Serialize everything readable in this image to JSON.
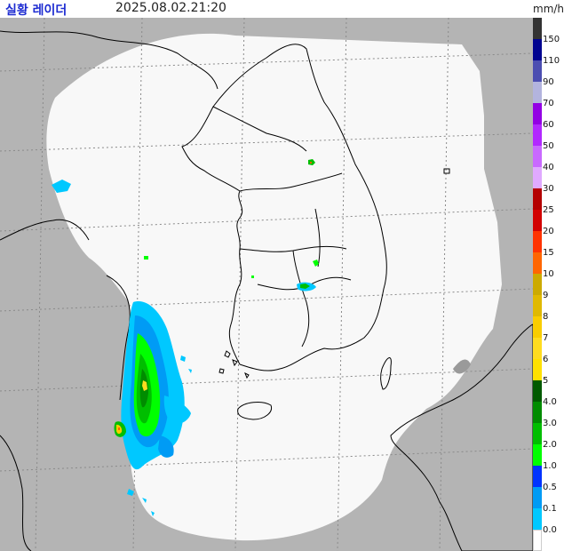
{
  "header": {
    "title": "실황 레이더",
    "timestamp": "2025.08.02.21:20",
    "unit": "mm/h"
  },
  "legend": {
    "levels": [
      {
        "label": "150",
        "color": "#333333"
      },
      {
        "label": "110",
        "color": "#000390"
      },
      {
        "label": "90",
        "color": "#4c4eb1"
      },
      {
        "label": "70",
        "color": "#b3b4de"
      },
      {
        "label": "60",
        "color": "#9300e4"
      },
      {
        "label": "50",
        "color": "#b229ff"
      },
      {
        "label": "40",
        "color": "#c969ff"
      },
      {
        "label": "30",
        "color": "#e0a9ff"
      },
      {
        "label": "25",
        "color": "#b40000"
      },
      {
        "label": "20",
        "color": "#d20000"
      },
      {
        "label": "15",
        "color": "#ff3300"
      },
      {
        "label": "10",
        "color": "#ff6600"
      },
      {
        "label": "9",
        "color": "#ccaa00"
      },
      {
        "label": "8",
        "color": "#e0b900"
      },
      {
        "label": "7",
        "color": "#f9cd00"
      },
      {
        "label": "6",
        "color": "#ffdc1f"
      },
      {
        "label": "5",
        "color": "#ffe100"
      },
      {
        "label": "4.0",
        "color": "#005a00"
      },
      {
        "label": "3.0",
        "color": "#008c00"
      },
      {
        "label": "2.0",
        "color": "#00be00"
      },
      {
        "label": "1.0",
        "color": "#00ff00"
      },
      {
        "label": "0.5",
        "color": "#0033ff"
      },
      {
        "label": "0.1",
        "color": "#009bf5"
      },
      {
        "label": "0.0",
        "color": "#00c8ff"
      }
    ],
    "base_color": "#ffffff"
  },
  "colors": {
    "outside_coverage": "#b4b4b4",
    "coverage": "#f8f8f8",
    "grid": "#8a8a8a",
    "coastline": "#000000"
  }
}
